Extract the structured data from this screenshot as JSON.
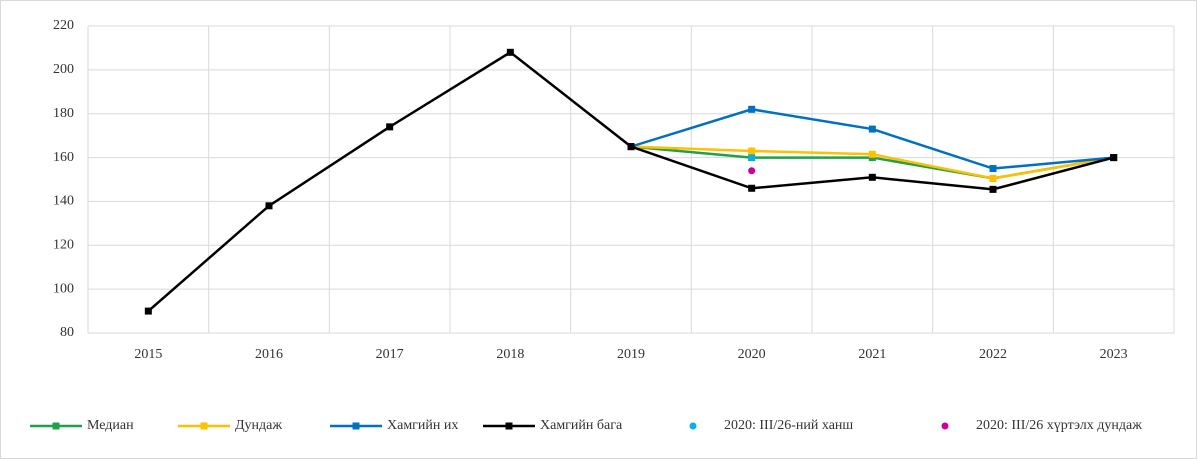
{
  "chart_data": {
    "type": "line",
    "categories": [
      "2015",
      "2016",
      "2017",
      "2018",
      "2019",
      "2020",
      "2021",
      "2022",
      "2023"
    ],
    "series": [
      {
        "name": "Медиан",
        "color": "#21a04a",
        "values": [
          null,
          null,
          null,
          null,
          165,
          160,
          160,
          150.5,
          160
        ]
      },
      {
        "name": "Дундаж",
        "color": "#ffc000",
        "values": [
          null,
          null,
          null,
          null,
          165,
          163,
          161.5,
          150.5,
          160
        ]
      },
      {
        "name": "Хамгийн их",
        "color": "#0070c0",
        "values": [
          null,
          null,
          null,
          null,
          165,
          182,
          173,
          155,
          160
        ]
      },
      {
        "name": "Хамгийн бага",
        "color": "#000000",
        "values": [
          90,
          138,
          174,
          208,
          165,
          146,
          151,
          145.5,
          160
        ]
      },
      {
        "name": "2020: III/26-ний ханш",
        "color": "#00b0f0",
        "marker_only": true,
        "values": [
          null,
          null,
          null,
          null,
          null,
          160,
          null,
          null,
          null
        ]
      },
      {
        "name": "2020: III/26 хүртэлх дундаж",
        "color": "#cc0099",
        "marker_only": true,
        "values": [
          null,
          null,
          null,
          null,
          null,
          154,
          null,
          null,
          null
        ]
      }
    ],
    "ylim": [
      80,
      220
    ],
    "yticks": [
      80,
      100,
      120,
      140,
      160,
      180,
      200,
      220
    ],
    "grid": true,
    "legend": "bottom"
  }
}
